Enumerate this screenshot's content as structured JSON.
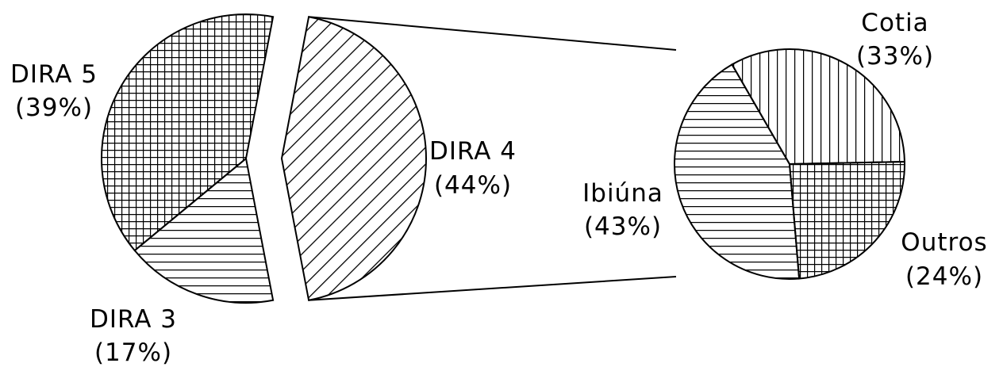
{
  "chart_data": [
    {
      "type": "pie",
      "title": "",
      "slices": [
        {
          "label": "DIRA 5",
          "pct_text": "(39%)",
          "value": 39,
          "pattern": "grid"
        },
        {
          "label": "DIRA 4",
          "pct_text": "(44%)",
          "value": 44,
          "pattern": "diagonal"
        },
        {
          "label": "DIRA 3",
          "pct_text": "(17%)",
          "value": 17,
          "pattern": "horizontal"
        }
      ]
    },
    {
      "type": "pie",
      "title": "",
      "slices": [
        {
          "label": "Cotia",
          "pct_text": "(33%)",
          "value": 33,
          "pattern": "vertical"
        },
        {
          "label": "Outros",
          "pct_text": "(24%)",
          "value": 24,
          "pattern": "grid"
        },
        {
          "label": "Ibiúna",
          "pct_text": "(43%)",
          "value": 43,
          "pattern": "horizontal"
        }
      ]
    }
  ],
  "colors": {
    "stroke": "#000000",
    "background": "#ffffff"
  }
}
